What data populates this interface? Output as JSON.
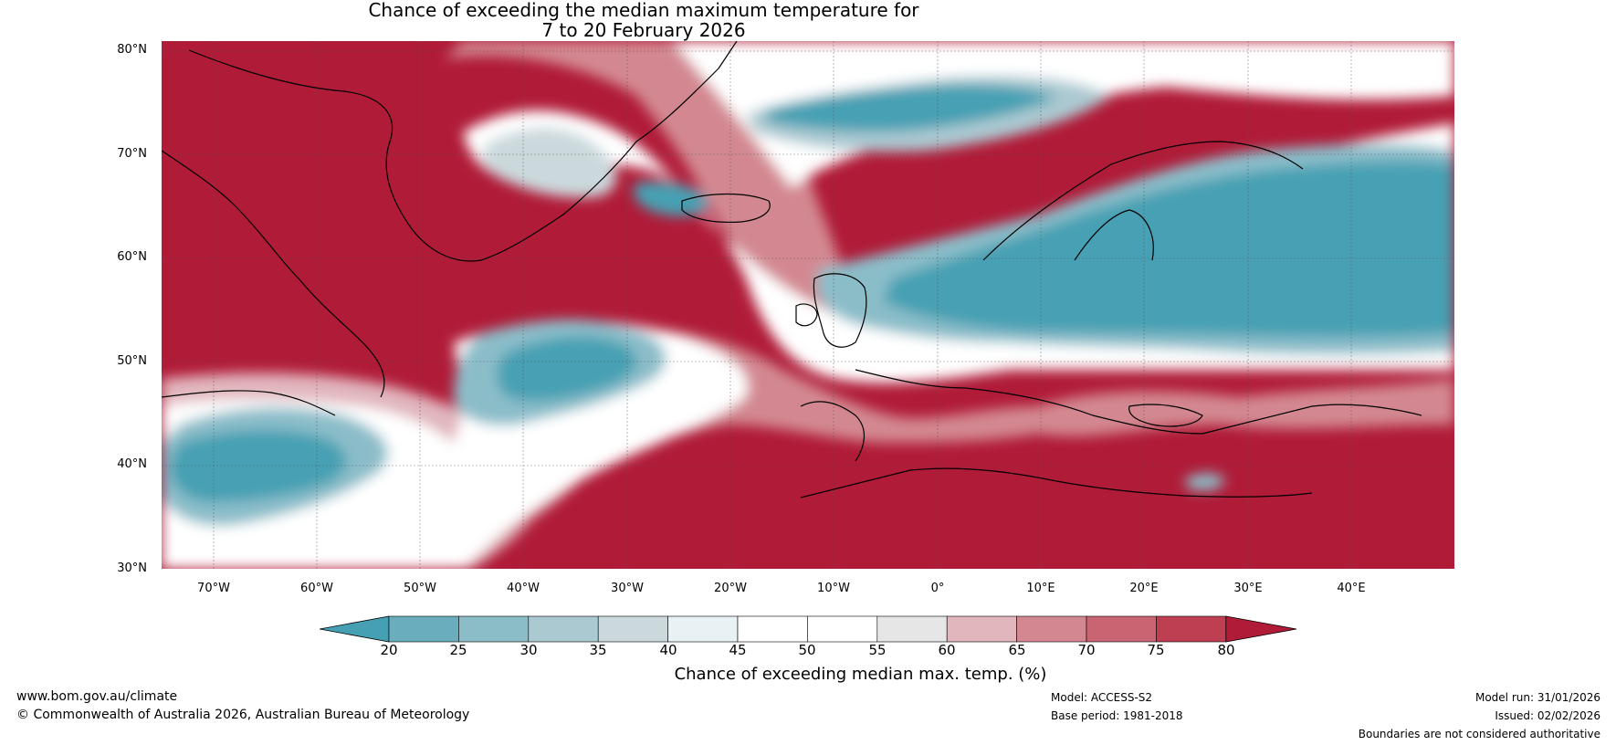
{
  "title_line1": "Chance of exceeding the median maximum temperature for",
  "title_line2": "7 to 20 February 2026",
  "lat_labels": [
    "80°N",
    "70°N",
    "60°N",
    "50°N",
    "40°N",
    "30°N"
  ],
  "lon_labels": [
    "70°W",
    "60°W",
    "50°W",
    "40°W",
    "30°W",
    "20°W",
    "10°W",
    "0°",
    "10°E",
    "20°E",
    "30°E",
    "40°E"
  ],
  "extent": {
    "lon_min": -75,
    "lon_max": 50,
    "lat_min": 30,
    "lat_max": 81
  },
  "colorbar": {
    "ticks": [
      "20",
      "25",
      "30",
      "35",
      "40",
      "45",
      "50",
      "55",
      "60",
      "65",
      "70",
      "75",
      "80"
    ],
    "colors": [
      "#46a0b3",
      "#6aaebd",
      "#8bbdc9",
      "#abc9d1",
      "#cbd9dd",
      "#e8f1f3",
      "#ffffff",
      "#ffffff",
      "#e6e6e6",
      "#e1b6bd",
      "#d38891",
      "#c96572",
      "#bf3f52",
      "#b01b38"
    ],
    "label": "Chance of exceeding median max. temp. (%)"
  },
  "footer": {
    "website": "www.bom.gov.au/climate",
    "copyright": "© Commonwealth of Australia 2026, Australian Bureau of Meteorology",
    "model": "Model: ACCESS-S2",
    "base_period": "Base period: 1981-2018",
    "model_run": "Model run: 31/01/2026",
    "issued": "Issued: 02/02/2026",
    "disclaimer": "Boundaries are not considered authoritative"
  }
}
